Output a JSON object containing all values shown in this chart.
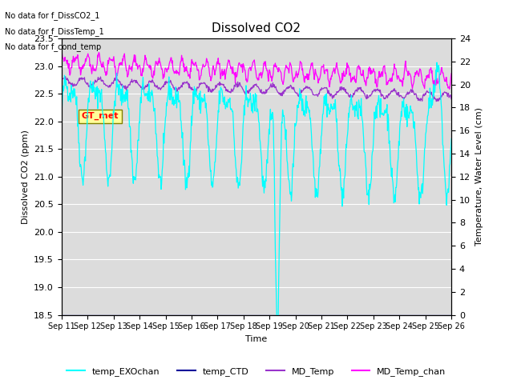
{
  "title": "Dissolved CO2",
  "xlabel": "Time",
  "ylabel_left": "Dissolved CO2 (ppm)",
  "ylabel_right": "Temperature, Water Level (cm)",
  "ylim_left": [
    18.5,
    23.5
  ],
  "ylim_right": [
    0,
    24
  ],
  "yticks_left": [
    18.5,
    19.0,
    19.5,
    20.0,
    20.5,
    21.0,
    21.5,
    22.0,
    22.5,
    23.0,
    23.5
  ],
  "yticks_right": [
    0,
    2,
    4,
    6,
    8,
    10,
    12,
    14,
    16,
    18,
    20,
    22,
    24
  ],
  "xtick_labels": [
    "Sep 11",
    "Sep 12",
    "Sep 13",
    "Sep 14",
    "Sep 15",
    "Sep 16",
    "Sep 17",
    "Sep 18",
    "Sep 19",
    "Sep 20",
    "Sep 21",
    "Sep 22",
    "Sep 23",
    "Sep 24",
    "Sep 25",
    "Sep 26"
  ],
  "no_data_texts": [
    "No data for f_DissCO2_1",
    "No data for f_DissTemp_1",
    "No data for f_cond_temp"
  ],
  "gt_met_label": "GT_met",
  "legend_entries": [
    "temp_EXOchan",
    "temp_CTD",
    "MD_Temp",
    "MD_Temp_chan"
  ],
  "legend_colors": [
    "#00FFFF",
    "#000099",
    "#9933CC",
    "#FF00FF"
  ],
  "background_color": "#DCDCDC",
  "title_fontsize": 11,
  "axis_fontsize": 8,
  "tick_fontsize": 8,
  "figsize": [
    6.4,
    4.8
  ],
  "dpi": 100
}
